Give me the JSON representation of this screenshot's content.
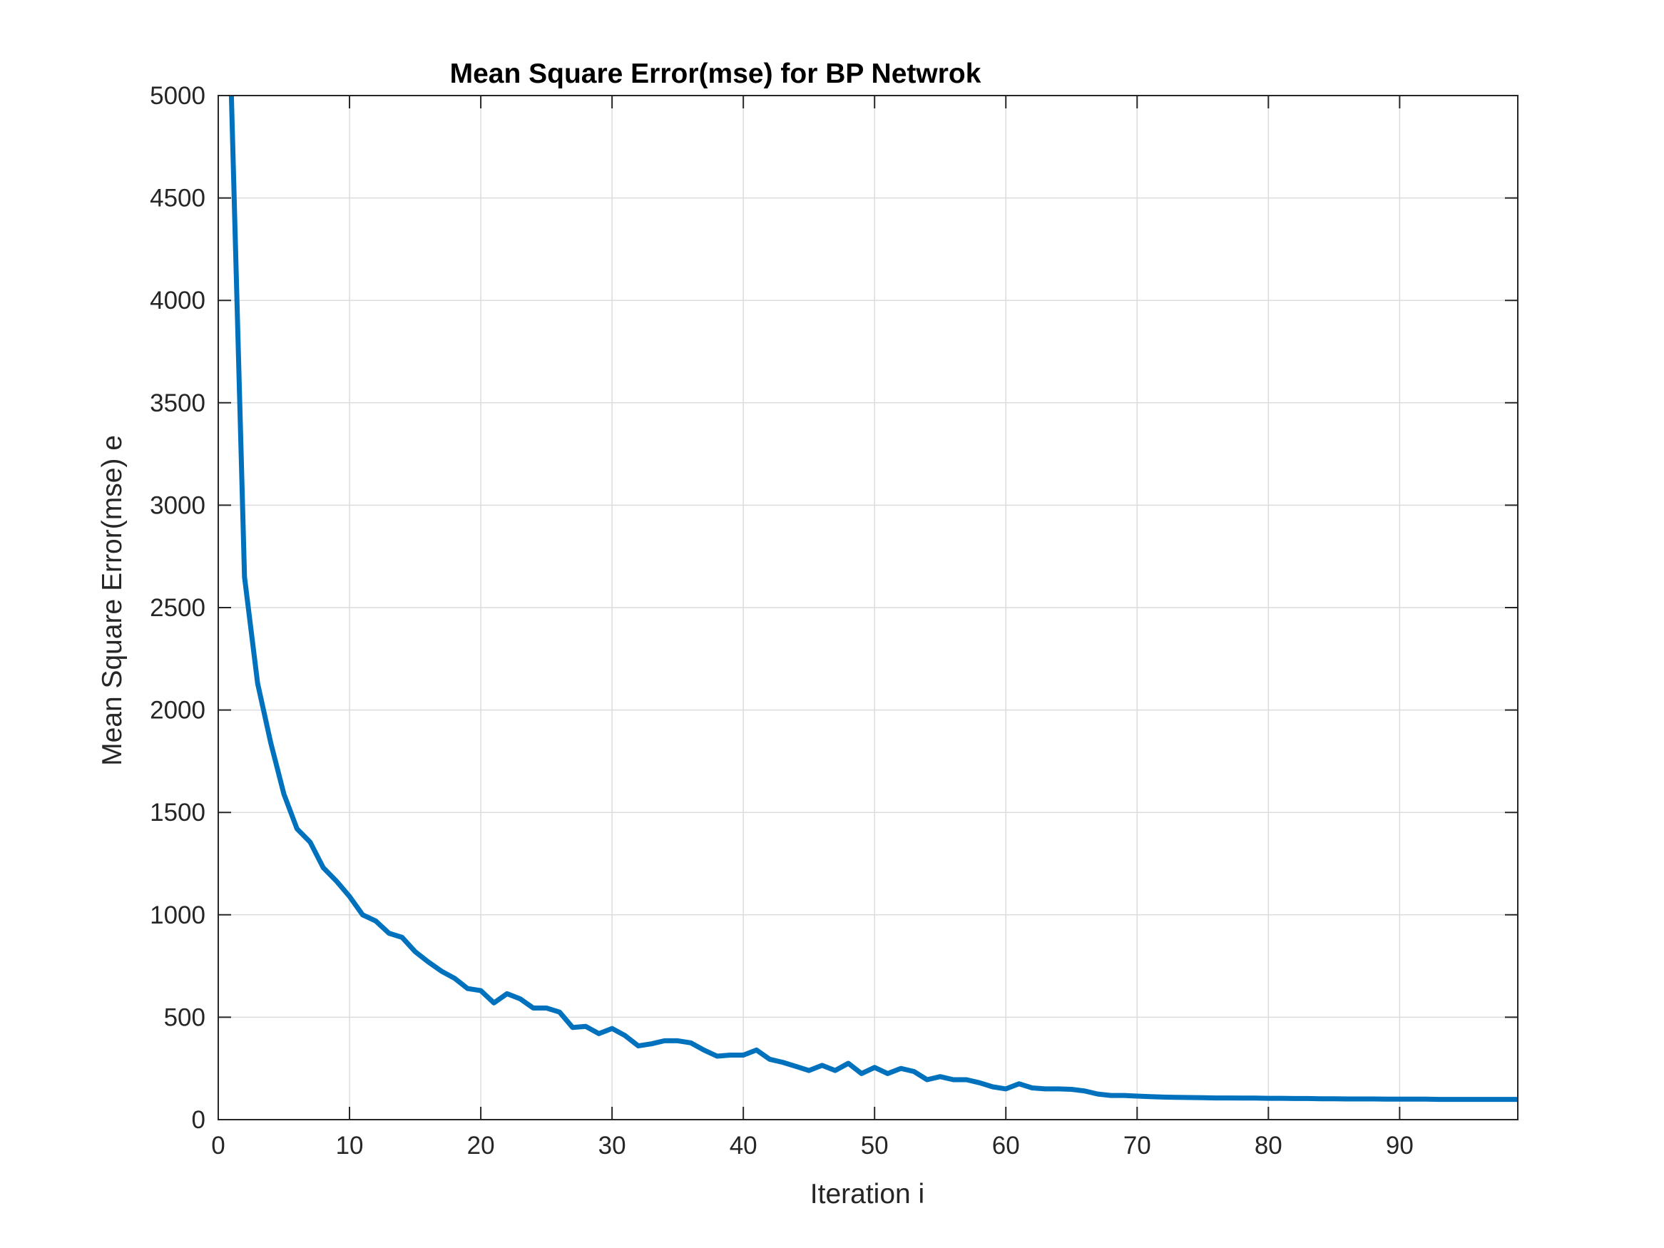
{
  "chart_data": {
    "type": "line",
    "title": "Mean Square Error(mse) for BP Netwrok",
    "xlabel": "Iteration i",
    "ylabel": "Mean Square Error(mse) e",
    "xlim": [
      0,
      99
    ],
    "ylim": [
      0,
      5000
    ],
    "xticks": [
      0,
      10,
      20,
      30,
      40,
      50,
      60,
      70,
      80,
      90
    ],
    "xtick_labels": [
      "0",
      "10",
      "20",
      "30",
      "40",
      "50",
      "60",
      "70",
      "80",
      "90"
    ],
    "yticks": [
      0,
      500,
      1000,
      1500,
      2000,
      2500,
      3000,
      3500,
      4000,
      4500,
      5000
    ],
    "ytick_labels": [
      "0",
      "500",
      "1000",
      "1500",
      "2000",
      "2500",
      "3000",
      "3500",
      "4000",
      "4500",
      "5000"
    ],
    "grid": true,
    "line_color": "#0072BD",
    "series": [
      {
        "x": [
          1,
          2,
          3,
          4,
          5,
          6,
          7,
          8,
          9,
          10,
          11,
          12,
          13,
          14,
          15,
          16,
          17,
          18,
          19,
          20,
          21,
          22,
          23,
          24,
          25,
          26,
          27,
          28,
          29,
          30,
          31,
          32,
          33,
          34,
          35,
          36,
          37,
          38,
          39,
          40,
          41,
          42,
          43,
          44,
          45,
          46,
          47,
          48,
          49,
          50,
          51,
          52,
          53,
          54,
          55,
          56,
          57,
          58,
          59,
          60,
          61,
          62,
          63,
          64,
          65,
          66,
          67,
          68,
          69,
          70,
          71,
          72,
          73,
          74,
          75,
          76,
          77,
          78,
          79,
          80,
          81,
          82,
          83,
          84,
          85,
          86,
          87,
          88,
          89,
          90,
          91,
          92,
          93,
          94,
          95,
          96,
          97,
          98,
          99
        ],
        "values": [
          5000,
          2650,
          2130,
          1840,
          1590,
          1420,
          1355,
          1230,
          1165,
          1090,
          1000,
          970,
          910,
          890,
          820,
          770,
          725,
          690,
          640,
          630,
          570,
          615,
          590,
          545,
          545,
          525,
          450,
          455,
          420,
          445,
          410,
          360,
          370,
          385,
          385,
          375,
          340,
          310,
          315,
          315,
          340,
          295,
          280,
          260,
          240,
          265,
          240,
          275,
          225,
          255,
          225,
          250,
          235,
          195,
          210,
          195,
          195,
          180,
          160,
          150,
          175,
          155,
          150,
          150,
          148,
          140,
          125,
          118,
          118,
          115,
          112,
          110,
          109,
          108,
          107,
          106,
          106,
          105,
          105,
          104,
          104,
          103,
          103,
          102,
          102,
          101,
          101,
          101,
          100,
          100,
          100,
          100,
          99,
          99,
          99,
          99,
          99,
          99,
          99
        ]
      }
    ]
  }
}
